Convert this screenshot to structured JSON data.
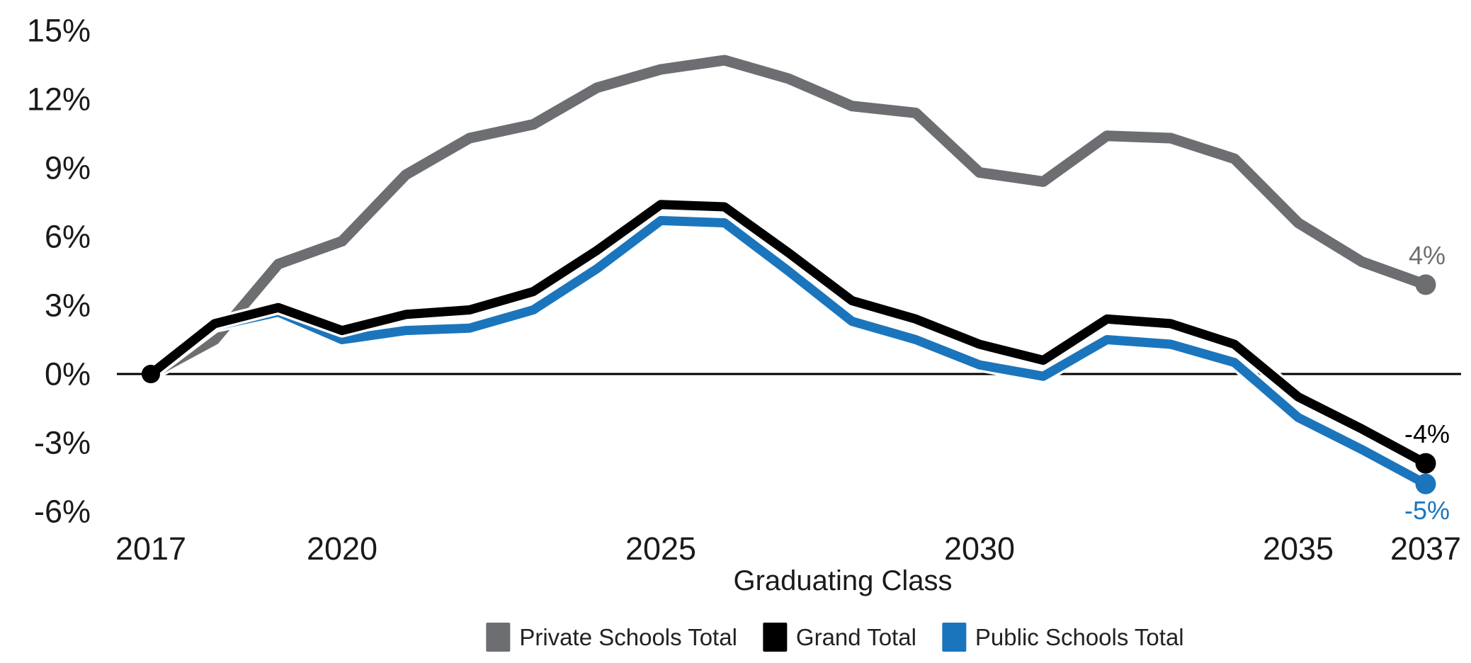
{
  "chart_data": {
    "type": "line",
    "title": "",
    "xlabel": "Graduating Class",
    "ylabel": "",
    "x": [
      2017,
      2018,
      2019,
      2020,
      2021,
      2022,
      2023,
      2024,
      2025,
      2026,
      2027,
      2028,
      2029,
      2030,
      2031,
      2032,
      2033,
      2034,
      2035,
      2036,
      2037
    ],
    "x_ticks": [
      {
        "label": "2017",
        "year": 2017
      },
      {
        "label": "2020",
        "year": 2020
      },
      {
        "label": "2025",
        "year": 2025
      },
      {
        "label": "2030",
        "year": 2030
      },
      {
        "label": "2035",
        "year": 2035
      },
      {
        "label": "2037",
        "year": 2037
      }
    ],
    "y_ticks": [
      {
        "label": "15%",
        "value": 15
      },
      {
        "label": "12%",
        "value": 12
      },
      {
        "label": "9%",
        "value": 9
      },
      {
        "label": "6%",
        "value": 6
      },
      {
        "label": "3%",
        "value": 3
      },
      {
        "label": "0%",
        "value": 0
      },
      {
        "label": "-3%",
        "value": -3
      },
      {
        "label": "-6%",
        "value": -6
      }
    ],
    "ylim": [
      -6.9,
      15.6
    ],
    "grid": false,
    "baseline": 0,
    "legend_position": "bottom",
    "series": [
      {
        "name": "Private Schools Total",
        "color": "#6d6e71",
        "line_width": 15,
        "end_label": "4%",
        "end_label_position": "above",
        "values": [
          0,
          1.5,
          4.8,
          5.8,
          8.7,
          10.3,
          10.9,
          12.5,
          13.3,
          13.7,
          12.9,
          11.7,
          11.4,
          8.8,
          8.4,
          10.4,
          10.3,
          9.4,
          6.6,
          4.9,
          3.9
        ]
      },
      {
        "name": "Grand Total",
        "color": "#000000",
        "line_width": 13,
        "end_label": "-4%",
        "end_label_position": "above",
        "values": [
          0,
          2.2,
          2.9,
          1.9,
          2.6,
          2.8,
          3.6,
          5.4,
          7.4,
          7.3,
          5.3,
          3.2,
          2.4,
          1.3,
          0.6,
          2.4,
          2.2,
          1.3,
          -1.0,
          -2.4,
          -3.9
        ]
      },
      {
        "name": "Public Schools Total",
        "color": "#1b75bc",
        "line_width": 13,
        "end_label": "-5%",
        "end_label_position": "below",
        "values": [
          0,
          2.1,
          2.7,
          1.5,
          1.9,
          2.0,
          2.8,
          4.6,
          6.7,
          6.6,
          4.5,
          2.3,
          1.5,
          0.4,
          -0.1,
          1.5,
          1.3,
          0.5,
          -1.9,
          -3.3,
          -4.8
        ]
      }
    ]
  }
}
